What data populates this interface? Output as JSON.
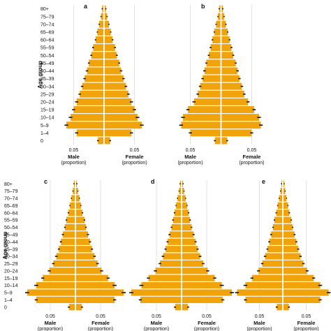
{
  "figure": {
    "bar_color": "#F0A30A",
    "errorbar_color": "#111111",
    "divider_color": "#ffffff",
    "grid_color": "#d9d9d9"
  },
  "chart_data": [
    {
      "panel": "a",
      "type": "bar",
      "orientation": "population-pyramid",
      "ylabel": "Age group",
      "age_groups": [
        "0",
        "1–4",
        "5–9",
        "10–14",
        "15–19",
        "20–24",
        "25–29",
        "30–34",
        "35–39",
        "40–44",
        "45–49",
        "50–54",
        "55–59",
        "60–64",
        "65–69",
        "70–74",
        "75–79",
        "80+"
      ],
      "x_tick_labels": [
        "0.05",
        "0.05"
      ],
      "xlabel_male": "Male",
      "xlabel_male_sub": "(proportion)",
      "xlabel_female": "Female",
      "xlabel_female_sub": "(proportion)",
      "xlim": [
        -0.07,
        0.07
      ],
      "series": [
        {
          "side": "male",
          "values": [
            0.01,
            0.045,
            0.062,
            0.055,
            0.05,
            0.045,
            0.04,
            0.036,
            0.032,
            0.028,
            0.025,
            0.021,
            0.018,
            0.014,
            0.011,
            0.008,
            0.005,
            0.003
          ],
          "errors": [
            0.0015,
            0.0025,
            0.003,
            0.003,
            0.0025,
            0.0025,
            0.002,
            0.002,
            0.002,
            0.002,
            0.0015,
            0.0015,
            0.0015,
            0.0012,
            0.001,
            0.001,
            0.001,
            0.001
          ]
        },
        {
          "side": "female",
          "values": [
            0.01,
            0.045,
            0.062,
            0.055,
            0.05,
            0.045,
            0.04,
            0.036,
            0.032,
            0.028,
            0.025,
            0.021,
            0.018,
            0.014,
            0.011,
            0.008,
            0.005,
            0.003
          ],
          "errors": [
            0.0015,
            0.0025,
            0.003,
            0.003,
            0.0025,
            0.0025,
            0.002,
            0.002,
            0.002,
            0.002,
            0.0015,
            0.0015,
            0.0015,
            0.0012,
            0.001,
            0.001,
            0.001,
            0.001
          ]
        }
      ]
    },
    {
      "panel": "b",
      "type": "bar",
      "orientation": "population-pyramid",
      "ylabel": "",
      "age_groups": [
        "0",
        "1–4",
        "5–9",
        "10–14",
        "15–19",
        "20–24",
        "25–29",
        "30–34",
        "35–39",
        "40–44",
        "45–49",
        "50–54",
        "55–59",
        "60–64",
        "65–69",
        "70–74",
        "75–79",
        "80+"
      ],
      "x_tick_labels": [
        "0.05",
        "0.05"
      ],
      "xlabel_male": "Male",
      "xlabel_male_sub": "(proportion)",
      "xlabel_female": "Female",
      "xlabel_female_sub": "(proportion)",
      "xlim": [
        -0.07,
        0.07
      ],
      "series": [
        {
          "side": "male",
          "values": [
            0.01,
            0.05,
            0.065,
            0.062,
            0.054,
            0.044,
            0.038,
            0.034,
            0.03,
            0.027,
            0.024,
            0.02,
            0.017,
            0.014,
            0.011,
            0.008,
            0.005,
            0.003
          ],
          "errors": [
            0.0015,
            0.0025,
            0.003,
            0.003,
            0.0025,
            0.0025,
            0.002,
            0.002,
            0.002,
            0.002,
            0.0015,
            0.0015,
            0.0015,
            0.0012,
            0.001,
            0.001,
            0.001,
            0.001
          ]
        },
        {
          "side": "female",
          "values": [
            0.01,
            0.05,
            0.065,
            0.062,
            0.054,
            0.044,
            0.038,
            0.034,
            0.03,
            0.027,
            0.024,
            0.02,
            0.017,
            0.014,
            0.011,
            0.008,
            0.005,
            0.003
          ],
          "errors": [
            0.0015,
            0.0025,
            0.003,
            0.003,
            0.0025,
            0.0025,
            0.002,
            0.002,
            0.002,
            0.002,
            0.0015,
            0.0015,
            0.0015,
            0.0012,
            0.001,
            0.001,
            0.001,
            0.001
          ]
        }
      ]
    },
    {
      "panel": "c",
      "type": "bar",
      "orientation": "population-pyramid",
      "ylabel": "Age group",
      "age_groups": [
        "0",
        "1–4",
        "5–9",
        "10–14",
        "15–19",
        "20–24",
        "25–29",
        "30–34",
        "35–39",
        "40–44",
        "45–49",
        "50–54",
        "55–59",
        "60–64",
        "65–69",
        "70–74",
        "75–79",
        "80+"
      ],
      "x_tick_labels": [
        "0.05",
        "0.05"
      ],
      "xlabel_male": "Male",
      "xlabel_male_sub": "(proportion)",
      "xlabel_female": "Female",
      "xlabel_female_sub": "(proportion)",
      "xlim": [
        -0.1,
        0.1
      ],
      "series": [
        {
          "side": "male",
          "values": [
            0.013,
            0.078,
            0.096,
            0.078,
            0.065,
            0.052,
            0.044,
            0.038,
            0.033,
            0.029,
            0.025,
            0.021,
            0.018,
            0.014,
            0.011,
            0.008,
            0.005,
            0.003
          ],
          "errors": [
            0.002,
            0.003,
            0.004,
            0.004,
            0.003,
            0.003,
            0.0025,
            0.0025,
            0.002,
            0.002,
            0.002,
            0.0015,
            0.0015,
            0.0015,
            0.001,
            0.001,
            0.001,
            0.001
          ]
        },
        {
          "side": "female",
          "values": [
            0.013,
            0.078,
            0.096,
            0.078,
            0.065,
            0.052,
            0.044,
            0.038,
            0.033,
            0.029,
            0.025,
            0.021,
            0.018,
            0.014,
            0.011,
            0.008,
            0.005,
            0.003
          ],
          "errors": [
            0.002,
            0.003,
            0.004,
            0.004,
            0.003,
            0.003,
            0.0025,
            0.0025,
            0.002,
            0.002,
            0.002,
            0.0015,
            0.0015,
            0.0015,
            0.001,
            0.001,
            0.001,
            0.001
          ]
        }
      ]
    },
    {
      "panel": "d",
      "type": "bar",
      "orientation": "population-pyramid",
      "ylabel": "",
      "age_groups": [
        "0",
        "1–4",
        "5–9",
        "10–14",
        "15–19",
        "20–24",
        "25–29",
        "30–34",
        "35–39",
        "40–44",
        "45–49",
        "50–54",
        "55–59",
        "60–64",
        "65–69",
        "70–74",
        "75–79",
        "80+"
      ],
      "x_tick_labels": [
        "0.05",
        "0.05"
      ],
      "xlabel_male": "Male",
      "xlabel_male_sub": "(proportion)",
      "xlabel_female": "Female",
      "xlabel_female_sub": "(proportion)",
      "xlim": [
        -0.1,
        0.1
      ],
      "series": [
        {
          "side": "male",
          "values": [
            0.013,
            0.082,
            0.1,
            0.08,
            0.066,
            0.052,
            0.043,
            0.037,
            0.032,
            0.028,
            0.024,
            0.02,
            0.017,
            0.014,
            0.011,
            0.008,
            0.005,
            0.003
          ],
          "errors": [
            0.002,
            0.003,
            0.004,
            0.004,
            0.003,
            0.003,
            0.0025,
            0.0025,
            0.002,
            0.002,
            0.002,
            0.0015,
            0.0015,
            0.0015,
            0.001,
            0.001,
            0.001,
            0.001
          ]
        },
        {
          "side": "female",
          "values": [
            0.013,
            0.082,
            0.1,
            0.08,
            0.066,
            0.052,
            0.043,
            0.037,
            0.032,
            0.028,
            0.024,
            0.02,
            0.017,
            0.014,
            0.011,
            0.008,
            0.005,
            0.003
          ],
          "errors": [
            0.002,
            0.003,
            0.004,
            0.004,
            0.003,
            0.003,
            0.0025,
            0.0025,
            0.002,
            0.002,
            0.002,
            0.0015,
            0.0015,
            0.0015,
            0.001,
            0.001,
            0.001,
            0.001
          ]
        }
      ]
    },
    {
      "panel": "e",
      "type": "bar",
      "orientation": "population-pyramid",
      "ylabel": "",
      "age_groups": [
        "0",
        "1–4",
        "5–9",
        "10–14",
        "15–19",
        "20–24",
        "25–29",
        "30–34",
        "35–39",
        "40–44",
        "45–49",
        "50–54",
        "55–59",
        "60–64",
        "65–69",
        "70–74",
        "75–79",
        "80+"
      ],
      "x_tick_labels": [
        "0.05",
        "0.05"
      ],
      "xlabel_male": "Male",
      "xlabel_male_sub": "(proportion)",
      "xlabel_female": "Female",
      "xlabel_female_sub": "(proportion)",
      "xlim": [
        -0.1,
        0.1
      ],
      "series": [
        {
          "side": "male",
          "values": [
            0.013,
            0.08,
            0.098,
            0.08,
            0.066,
            0.052,
            0.044,
            0.038,
            0.033,
            0.029,
            0.025,
            0.021,
            0.018,
            0.014,
            0.011,
            0.008,
            0.005,
            0.003
          ],
          "errors": [
            0.002,
            0.003,
            0.004,
            0.004,
            0.003,
            0.003,
            0.0025,
            0.0025,
            0.002,
            0.002,
            0.002,
            0.0015,
            0.0015,
            0.0015,
            0.001,
            0.001,
            0.001,
            0.001
          ]
        },
        {
          "side": "female",
          "values": [
            0.013,
            0.08,
            0.098,
            0.08,
            0.066,
            0.052,
            0.044,
            0.038,
            0.033,
            0.029,
            0.025,
            0.021,
            0.018,
            0.014,
            0.011,
            0.008,
            0.005,
            0.003
          ],
          "errors": [
            0.002,
            0.003,
            0.004,
            0.004,
            0.003,
            0.003,
            0.0025,
            0.0025,
            0.002,
            0.002,
            0.002,
            0.0015,
            0.0015,
            0.0015,
            0.001,
            0.001,
            0.001,
            0.001
          ]
        }
      ]
    }
  ]
}
